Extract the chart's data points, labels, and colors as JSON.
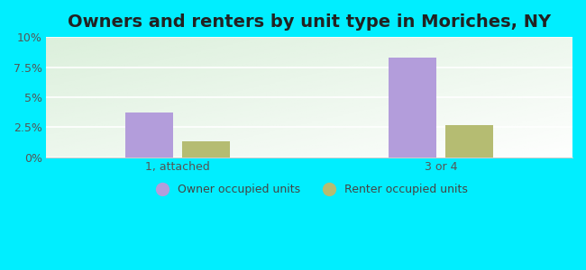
{
  "title": "Owners and renters by unit type in Moriches, NY",
  "categories": [
    "1, attached",
    "3 or 4"
  ],
  "owner_values": [
    3.7,
    8.3
  ],
  "renter_values": [
    1.3,
    2.7
  ],
  "owner_color": "#b39ddb",
  "renter_color": "#b5bc72",
  "bg_color": "#00eeff",
  "ylim": [
    0,
    10
  ],
  "yticks": [
    0,
    2.5,
    5.0,
    7.5,
    10.0
  ],
  "ytick_labels": [
    "0%",
    "2.5%",
    "5%",
    "7.5%",
    "10%"
  ],
  "bar_width": 0.18,
  "legend_labels": [
    "Owner occupied units",
    "Renter occupied units"
  ],
  "title_fontsize": 14,
  "tick_fontsize": 9,
  "legend_fontsize": 9
}
